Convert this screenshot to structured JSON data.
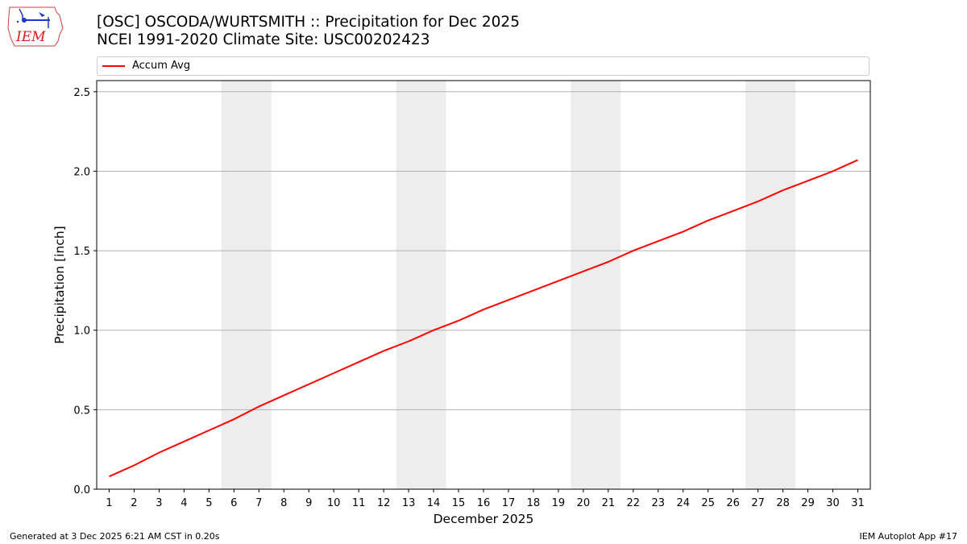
{
  "header": {
    "logo_text": "IEM",
    "title_line1": "[OSC] OSCODA/WURTSMITH :: Precipitation for Dec 2025",
    "title_line2": "NCEI 1991-2020 Climate Site: USC00202423"
  },
  "legend": {
    "items": [
      {
        "label": "Accum Avg",
        "color": "#ff0000"
      }
    ]
  },
  "footer": {
    "generated": "Generated at 3 Dec 2025 6:21 AM CST in 0.20s",
    "app": "IEM Autoplot App #17"
  },
  "chart_data": {
    "type": "line",
    "title": "[OSC] OSCODA/WURTSMITH :: Precipitation for Dec 2025",
    "subtitle": "NCEI 1991-2020 Climate Site: USC00202423",
    "xlabel": "December 2025",
    "ylabel": "Precipitation [inch]",
    "x": [
      1,
      2,
      3,
      4,
      5,
      6,
      7,
      8,
      9,
      10,
      11,
      12,
      13,
      14,
      15,
      16,
      17,
      18,
      19,
      20,
      21,
      22,
      23,
      24,
      25,
      26,
      27,
      28,
      29,
      30,
      31
    ],
    "series": [
      {
        "name": "Accum Avg",
        "color": "#ff0000",
        "values": [
          0.08,
          0.15,
          0.23,
          0.3,
          0.37,
          0.44,
          0.52,
          0.59,
          0.66,
          0.73,
          0.8,
          0.87,
          0.93,
          1.0,
          1.06,
          1.13,
          1.19,
          1.25,
          1.31,
          1.37,
          1.43,
          1.5,
          1.56,
          1.62,
          1.69,
          1.75,
          1.81,
          1.88,
          1.94,
          2.0,
          2.07
        ]
      }
    ],
    "ylim": [
      0,
      2.57
    ],
    "yticks": [
      "0.0",
      "0.5",
      "1.0",
      "1.5",
      "2.0",
      "2.5"
    ],
    "xticks": [
      "1",
      "2",
      "3",
      "4",
      "5",
      "6",
      "7",
      "8",
      "9",
      "10",
      "11",
      "12",
      "13",
      "14",
      "15",
      "16",
      "17",
      "18",
      "19",
      "20",
      "21",
      "22",
      "23",
      "24",
      "25",
      "26",
      "27",
      "28",
      "29",
      "30",
      "31"
    ],
    "shaded_weekends": [
      [
        6,
        7
      ],
      [
        13,
        14
      ],
      [
        20,
        21
      ],
      [
        27,
        28
      ]
    ],
    "grid": "horizontal",
    "legend_position": "top"
  }
}
